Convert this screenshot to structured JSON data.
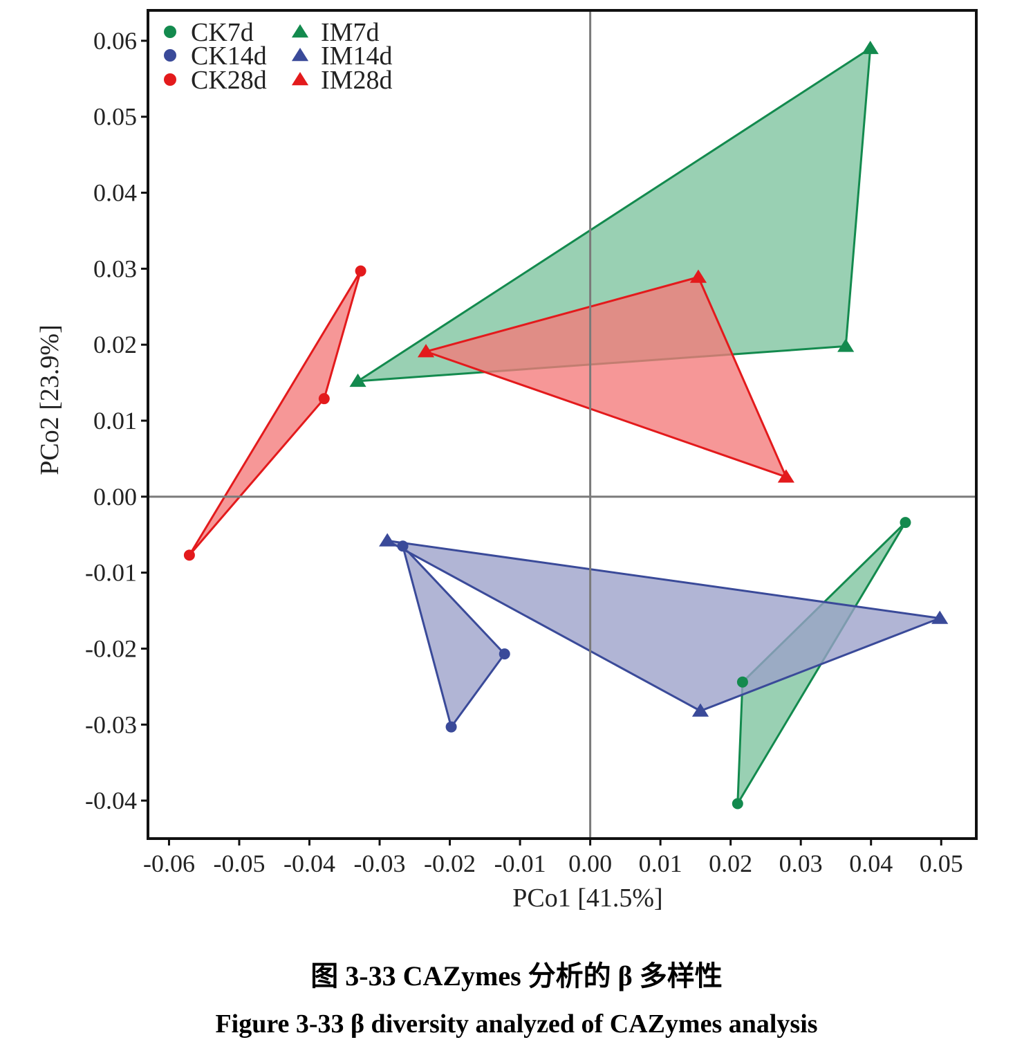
{
  "chart_data": {
    "type": "scatter",
    "xlabel": "PCo1 [41.5%]",
    "ylabel": "PCo2 [23.9%]",
    "xlim": [
      -0.063,
      0.055
    ],
    "ylim": [
      -0.045,
      0.064
    ],
    "x_ticks": [
      -0.06,
      -0.05,
      -0.04,
      -0.03,
      -0.02,
      -0.01,
      0.0,
      0.01,
      0.02,
      0.03,
      0.04,
      0.05
    ],
    "x_tick_labels": [
      "-0.06",
      "-0.05",
      "-0.04",
      "-0.03",
      "-0.02",
      "-0.01",
      "0.00",
      "0.01",
      "0.02",
      "0.03",
      "0.04",
      "0.05"
    ],
    "y_ticks": [
      0.06,
      0.05,
      0.04,
      0.03,
      0.02,
      0.01,
      0.0,
      -0.01,
      -0.02,
      -0.03,
      -0.04
    ],
    "y_tick_labels": [
      "0.06",
      "0.05",
      "0.04",
      "0.03",
      "0.02",
      "0.01",
      "0.00",
      "-0.01",
      "-0.02",
      "-0.03",
      "-0.04"
    ],
    "reference_lines": {
      "x": 0,
      "y": 0
    },
    "grid": false,
    "legend_position": "top-left",
    "hulls": "convex polygons per group",
    "series": [
      {
        "name": "CK7d",
        "marker": "circle",
        "color": "#138A4E",
        "points": [
          [
            0.0449,
            -0.0034
          ],
          [
            0.0217,
            -0.0244
          ],
          [
            0.021,
            -0.0404
          ]
        ]
      },
      {
        "name": "CK14d",
        "marker": "circle",
        "color": "#3A4A99",
        "points": [
          [
            -0.0267,
            -0.0065
          ],
          [
            -0.0122,
            -0.0207
          ],
          [
            -0.0198,
            -0.0303
          ]
        ]
      },
      {
        "name": "CK28d",
        "marker": "circle",
        "color": "#E31A1C",
        "points": [
          [
            -0.0327,
            0.0297
          ],
          [
            -0.0379,
            0.0129
          ],
          [
            -0.0571,
            -0.0077
          ]
        ]
      },
      {
        "name": "IM7d",
        "marker": "triangle",
        "color": "#138A4E",
        "points": [
          [
            0.0399,
            0.059
          ],
          [
            0.0364,
            0.0198
          ],
          [
            -0.0331,
            0.0152
          ]
        ]
      },
      {
        "name": "IM14d",
        "marker": "triangle",
        "color": "#3A4A99",
        "points": [
          [
            -0.0289,
            -0.0058
          ],
          [
            0.0498,
            -0.016
          ],
          [
            0.0157,
            -0.0282
          ]
        ]
      },
      {
        "name": "IM28d",
        "marker": "triangle",
        "color": "#E31A1C",
        "points": [
          [
            0.0154,
            0.0289
          ],
          [
            -0.0234,
            0.0191
          ],
          [
            0.0279,
            0.0026
          ]
        ]
      }
    ],
    "legend": [
      {
        "name": "CK7d",
        "marker": "circle",
        "color": "#138A4E"
      },
      {
        "name": "CK14d",
        "marker": "circle",
        "color": "#3A4A99"
      },
      {
        "name": "CK28d",
        "marker": "circle",
        "color": "#E31A1C"
      },
      {
        "name": "IM7d",
        "marker": "triangle",
        "color": "#138A4E"
      },
      {
        "name": "IM14d",
        "marker": "triangle",
        "color": "#3A4A99"
      },
      {
        "name": "IM28d",
        "marker": "triangle",
        "color": "#E31A1C"
      }
    ],
    "fill_colors": {
      "#138A4E": "#7CC39E",
      "#3A4A99": "#9BA0C9",
      "#E31A1C": "#F47A7A"
    }
  },
  "caption": {
    "chinese": "图 3-33 CAZymes 分析的 β 多样性",
    "english": "Figure 3-33 β diversity analyzed of CAZymes analysis"
  }
}
